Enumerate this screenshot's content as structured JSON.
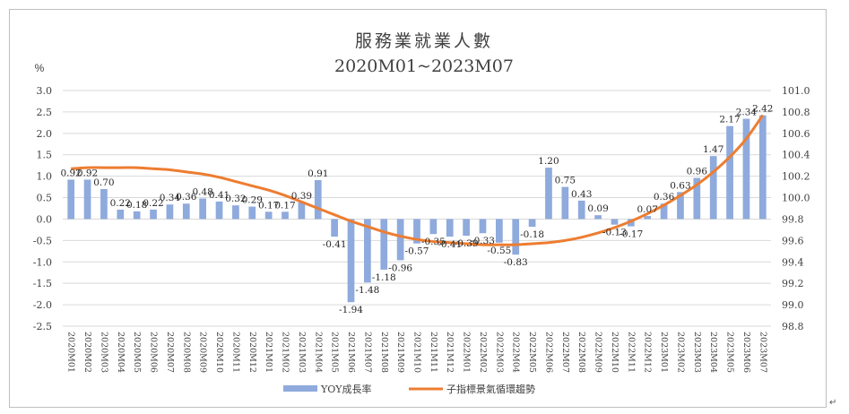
{
  "chart_data": {
    "type": "bar+line",
    "title": "服務業就業人數",
    "subtitle": "2020M01~2023M07",
    "ylabel_left": "%",
    "ylim_left": [
      -2.5,
      3.0
    ],
    "ytick_step_left": 0.5,
    "ylim_right": [
      98.8,
      101.0
    ],
    "ytick_step_right": 0.2,
    "categories": [
      "2020M01",
      "2020M02",
      "2020M03",
      "2020M04",
      "2020M05",
      "2020M06",
      "2020M07",
      "2020M08",
      "2020M09",
      "2020M10",
      "2020M11",
      "2020M12",
      "2021M01",
      "2021M02",
      "2021M03",
      "2021M04",
      "2021M05",
      "2021M06",
      "2021M07",
      "2021M08",
      "2021M09",
      "2021M10",
      "2021M11",
      "2021M12",
      "2022M01",
      "2022M02",
      "2022M03",
      "2022M04",
      "2022M05",
      "2022M06",
      "2022M07",
      "2022M08",
      "2022M09",
      "2022M10",
      "2022M11",
      "2022M12",
      "2023M01",
      "2023M02",
      "2023M03",
      "2023M04",
      "2023M05",
      "2023M06",
      "2023M07"
    ],
    "series": [
      {
        "name": "YOY成長率",
        "type": "bar",
        "axis": "left",
        "color": "#8faadc",
        "values": [
          0.92,
          0.92,
          0.7,
          0.22,
          0.18,
          0.22,
          0.34,
          0.36,
          0.48,
          0.41,
          0.32,
          0.29,
          0.17,
          0.17,
          0.39,
          0.91,
          -0.41,
          -1.94,
          -1.48,
          -1.18,
          -0.96,
          -0.57,
          -0.35,
          -0.41,
          -0.39,
          -0.33,
          -0.55,
          -0.83,
          -0.18,
          1.2,
          0.75,
          0.43,
          0.09,
          -0.13,
          -0.17,
          0.07,
          0.36,
          0.63,
          0.96,
          1.47,
          2.17,
          2.34,
          2.42
        ],
        "labels": [
          "0.92",
          "0.92",
          "0.70",
          "0.22",
          "0.18",
          "0.22",
          "0.34",
          "0.36",
          "0.48",
          "0.41",
          "0.32",
          "0.29",
          "0.17",
          "0.17",
          "0.39",
          "0.91",
          "-0.41",
          "-1.94",
          "-1.48",
          "-1.18",
          "-0.96",
          "-0.57",
          "-0.35",
          "-0.41",
          "-0.39",
          "-0.33",
          "-0.55",
          "-0.83",
          "-0.18",
          "1.20",
          "0.75",
          "0.43",
          "0.09",
          "-0.13",
          "-0.17",
          "0.07",
          "0.36",
          "0.63",
          "0.96",
          "1.47",
          "2.17",
          "2.34",
          "2.42"
        ]
      },
      {
        "name": "子指標景氣循環趨勢",
        "type": "line",
        "axis": "right",
        "color": "#ed7d31",
        "values": [
          100.27,
          100.28,
          100.28,
          100.28,
          100.28,
          100.27,
          100.26,
          100.24,
          100.22,
          100.19,
          100.15,
          100.11,
          100.07,
          100.02,
          99.96,
          99.9,
          99.84,
          99.78,
          99.73,
          99.68,
          99.64,
          99.61,
          99.59,
          99.58,
          99.57,
          99.56,
          99.56,
          99.56,
          99.57,
          99.58,
          99.6,
          99.63,
          99.67,
          99.72,
          99.78,
          99.85,
          99.93,
          100.02,
          100.12,
          100.24,
          100.38,
          100.55,
          100.77
        ]
      }
    ],
    "legend_position": "bottom"
  }
}
